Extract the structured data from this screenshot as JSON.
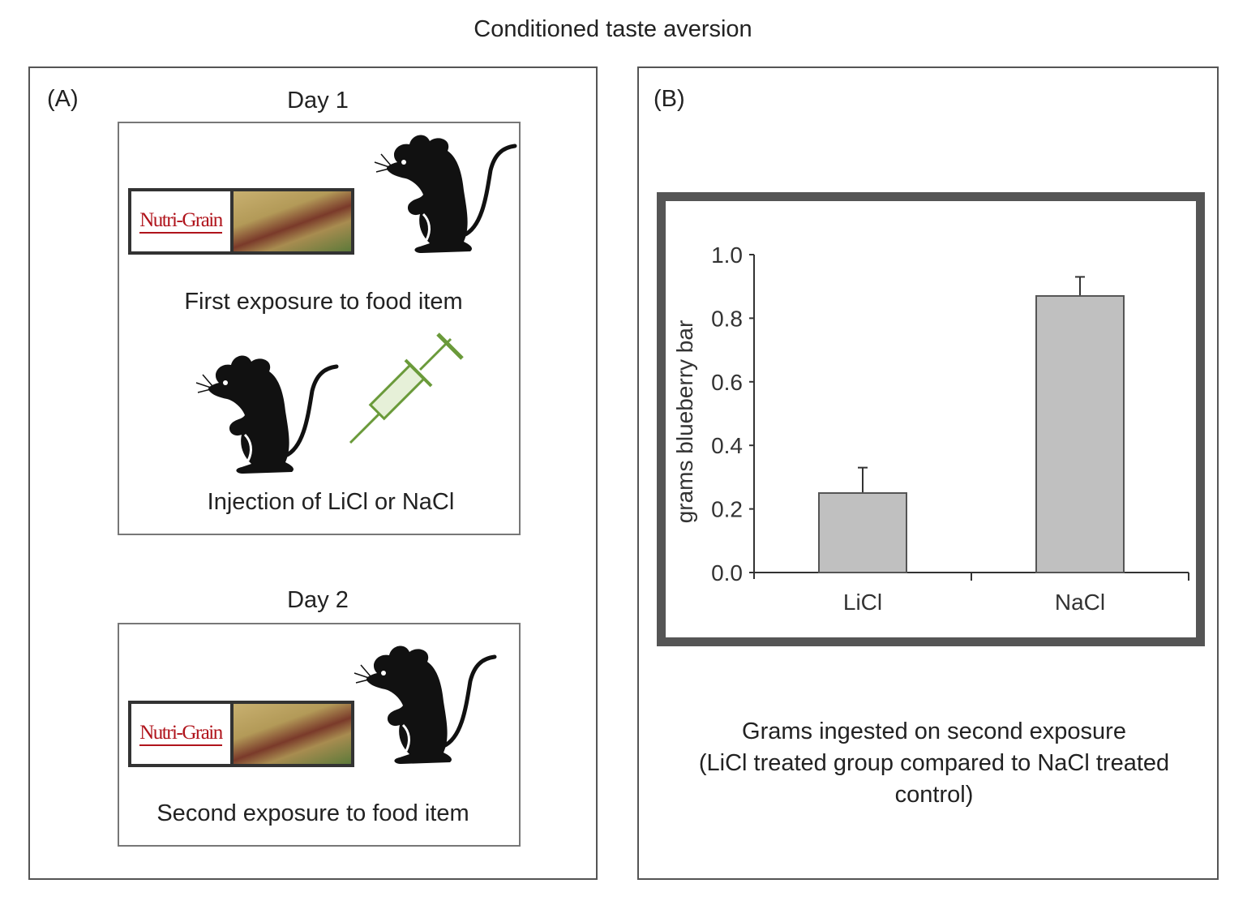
{
  "title": "Conditioned taste aversion",
  "panel_a": {
    "label": "(A)",
    "day1": {
      "heading": "Day 1",
      "caption_food": "First exposure to food item",
      "caption_injection": "Injection of LiCl or NaCl",
      "food_logo": "Nutri-Grain"
    },
    "day2": {
      "heading": "Day 2",
      "caption": "Second exposure to food item",
      "food_logo": "Nutri-Grain"
    }
  },
  "panel_b": {
    "label": "(B)",
    "caption": [
      "Grams ingested on second exposure",
      "(LiCl treated group compared to NaCl treated",
      "control)"
    ]
  },
  "chart_data": {
    "type": "bar",
    "title": "",
    "xlabel": "",
    "ylabel": "grams blueberry bar",
    "categories": [
      "LiCl",
      "NaCl"
    ],
    "values": [
      0.25,
      0.87
    ],
    "error_upper": [
      0.33,
      0.93
    ],
    "ylim": [
      0,
      1.0
    ],
    "yticks": [
      "0.0",
      "0.2",
      "0.4",
      "0.6",
      "0.8",
      "1.0"
    ],
    "bar_color": "#c0c0c0",
    "grid": false
  },
  "colors": {
    "mouse": "#111111",
    "syringe": "#6a9a3a",
    "frame": "#555555"
  }
}
